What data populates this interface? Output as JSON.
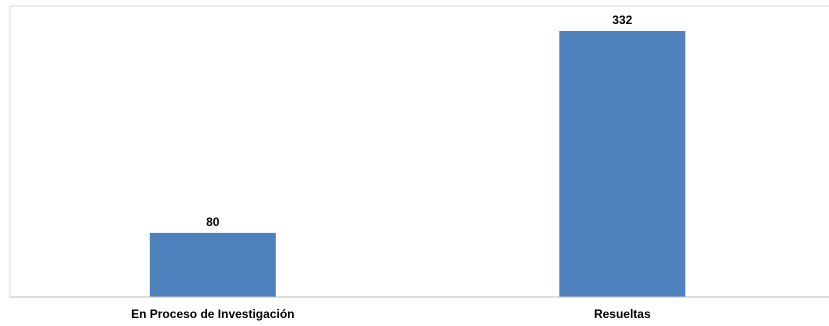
{
  "chart_data": {
    "type": "bar",
    "categories": [
      "En Proceso de Investigación",
      "Resueltas"
    ],
    "values": [
      80,
      332
    ],
    "data_labels": [
      "80",
      "332"
    ],
    "title": "",
    "xlabel": "",
    "ylabel": "",
    "ylim": [
      0,
      350
    ],
    "grid": false,
    "legend": "none",
    "colors": {
      "bar": "#4f81bd",
      "axis": "#bfbfbf",
      "frame": "#d9d9d9"
    }
  }
}
